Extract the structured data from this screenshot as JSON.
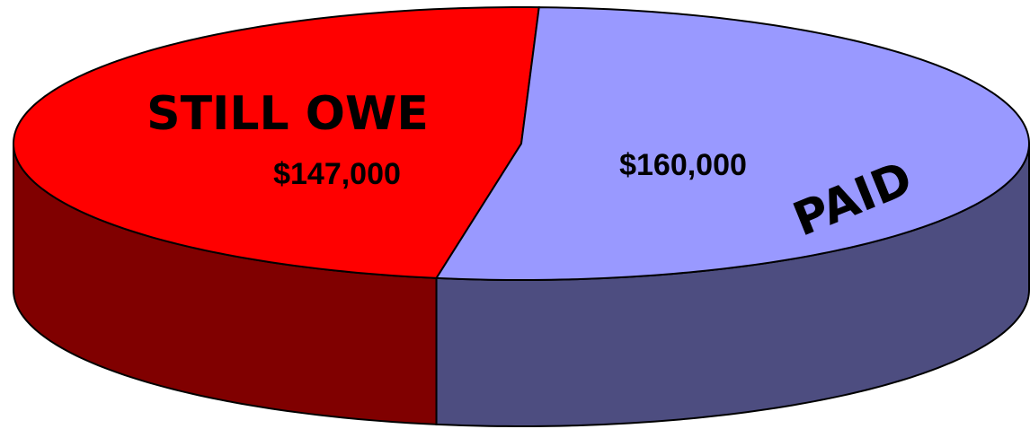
{
  "chart_data": {
    "type": "pie",
    "categories": [
      "STILL OWE",
      "PAID"
    ],
    "values": [
      147000,
      160000
    ],
    "value_labels": [
      "$147,000",
      "$160,000"
    ],
    "colors": [
      "#ff0000",
      "#9999ff"
    ],
    "side_colors": [
      "#800000",
      "#4d4d80"
    ]
  }
}
